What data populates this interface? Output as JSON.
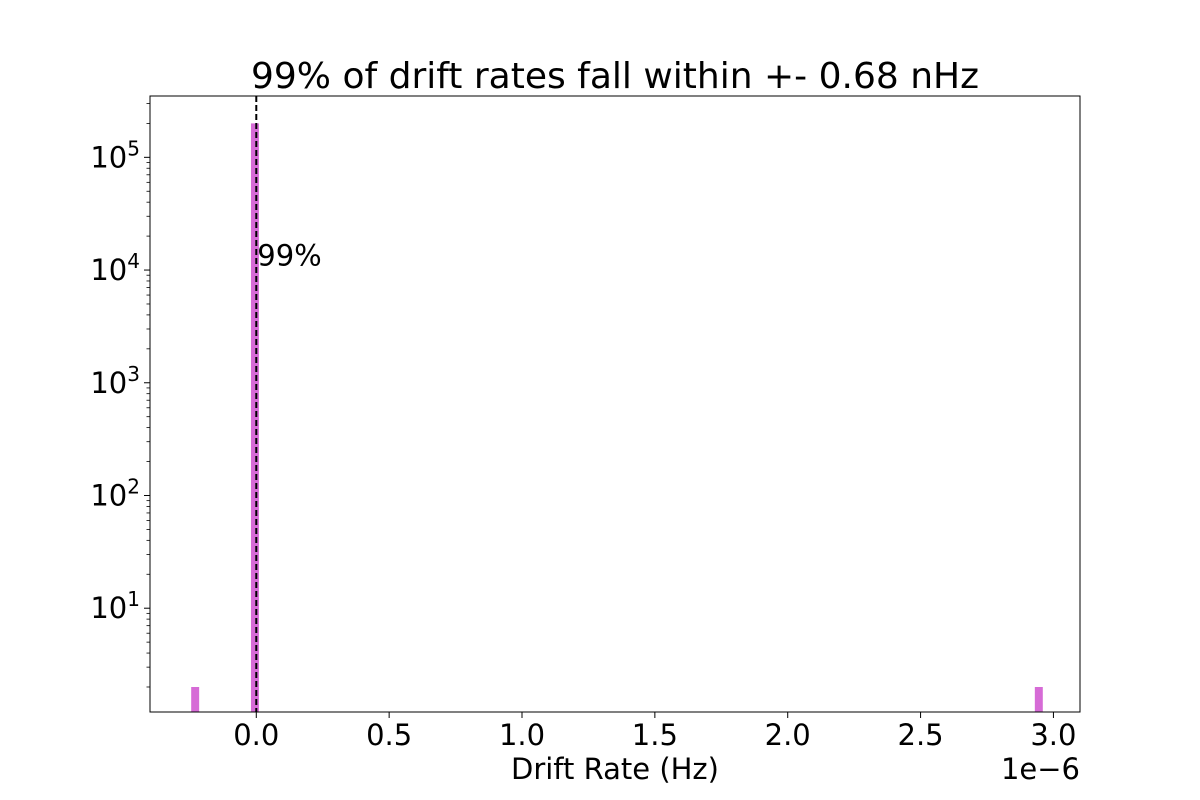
{
  "chart_data": {
    "type": "bar",
    "title": "99% of drift rates fall within +- 0.68 nHz",
    "xlabel": "Drift Rate (Hz)",
    "ylabel": "",
    "x_offset_label": "1e−6",
    "x_scale": "linear",
    "y_scale": "log",
    "xlim": [
      -4e-07,
      3.1e-06
    ],
    "ylim": [
      1.2,
      350000
    ],
    "x_ticks": [
      0.0,
      5e-07,
      1e-06,
      1.5e-06,
      2e-06,
      2.5e-06,
      3e-06
    ],
    "x_tick_labels": [
      "0.0",
      "0.5",
      "1.0",
      "1.5",
      "2.0",
      "2.5",
      "3.0"
    ],
    "y_ticks": [
      10,
      100,
      1000,
      10000,
      100000
    ],
    "y_tick_labels": [
      {
        "base": "10",
        "exp": "1"
      },
      {
        "base": "10",
        "exp": "2"
      },
      {
        "base": "10",
        "exp": "3"
      },
      {
        "base": "10",
        "exp": "4"
      },
      {
        "base": "10",
        "exp": "5"
      }
    ],
    "bars": [
      {
        "x_start": -2.45e-07,
        "x_end": -2.15e-07,
        "count": 2
      },
      {
        "x_start": -2e-08,
        "x_end": 1e-08,
        "count": 200000
      },
      {
        "x_start": 2.93e-06,
        "x_end": 2.96e-06,
        "count": 2
      }
    ],
    "bar_color": "#d66bd6",
    "vline": {
      "x": 0.0,
      "style": "dashed",
      "color": "#000000"
    },
    "annotation": {
      "text": "99%",
      "x": 0.0,
      "y": 11000
    },
    "grid": false,
    "legend": "none"
  }
}
